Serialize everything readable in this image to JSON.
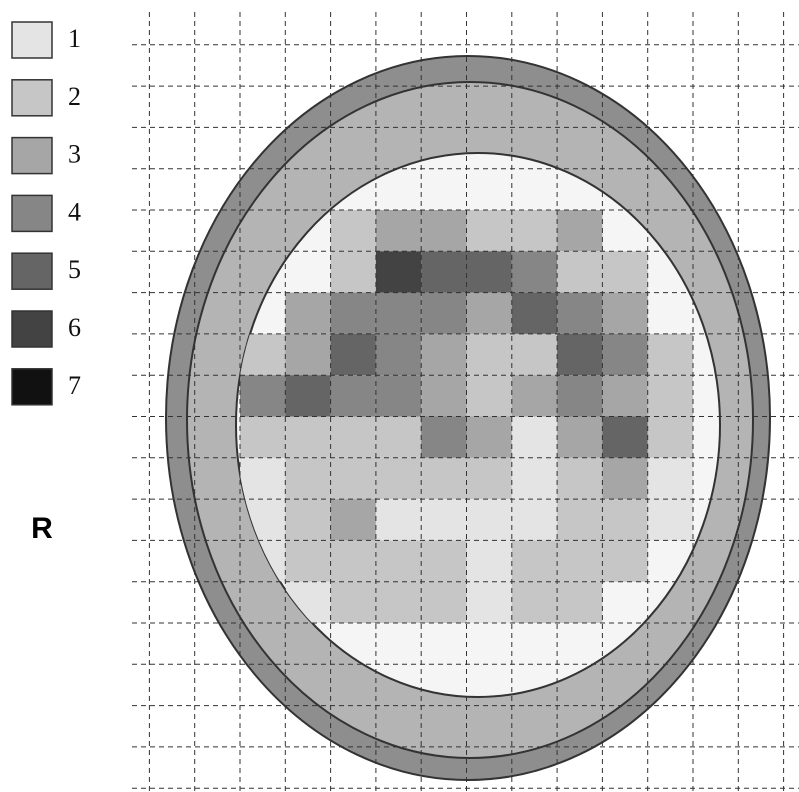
{
  "legend": {
    "items": [
      {
        "label": "1",
        "color": "#e4e4e4"
      },
      {
        "label": "2",
        "color": "#c6c6c6"
      },
      {
        "label": "3",
        "color": "#a6a6a6"
      },
      {
        "label": "4",
        "color": "#868686"
      },
      {
        "label": "5",
        "color": "#656565"
      },
      {
        "label": "6",
        "color": "#434343"
      },
      {
        "label": "7",
        "color": "#111111"
      }
    ]
  },
  "side_label": "R",
  "cells": [
    [
      null,
      null,
      2,
      3,
      3,
      2,
      2,
      3,
      null,
      null
    ],
    [
      null,
      null,
      2,
      6,
      5,
      5,
      4,
      2,
      2,
      null
    ],
    [
      null,
      3,
      4,
      4,
      4,
      3,
      5,
      4,
      3,
      null
    ],
    [
      2,
      3,
      5,
      4,
      3,
      2,
      2,
      5,
      4,
      2
    ],
    [
      4,
      5,
      4,
      4,
      3,
      2,
      3,
      4,
      3,
      2
    ],
    [
      2,
      2,
      2,
      2,
      4,
      3,
      1,
      3,
      5,
      2
    ],
    [
      1,
      2,
      2,
      2,
      2,
      2,
      1,
      2,
      3,
      1
    ],
    [
      1,
      2,
      3,
      1,
      1,
      1,
      1,
      2,
      2,
      1
    ],
    [
      1,
      2,
      2,
      2,
      2,
      1,
      2,
      2,
      2,
      null
    ],
    [
      null,
      1,
      2,
      2,
      2,
      1,
      2,
      2,
      null,
      null
    ]
  ]
}
